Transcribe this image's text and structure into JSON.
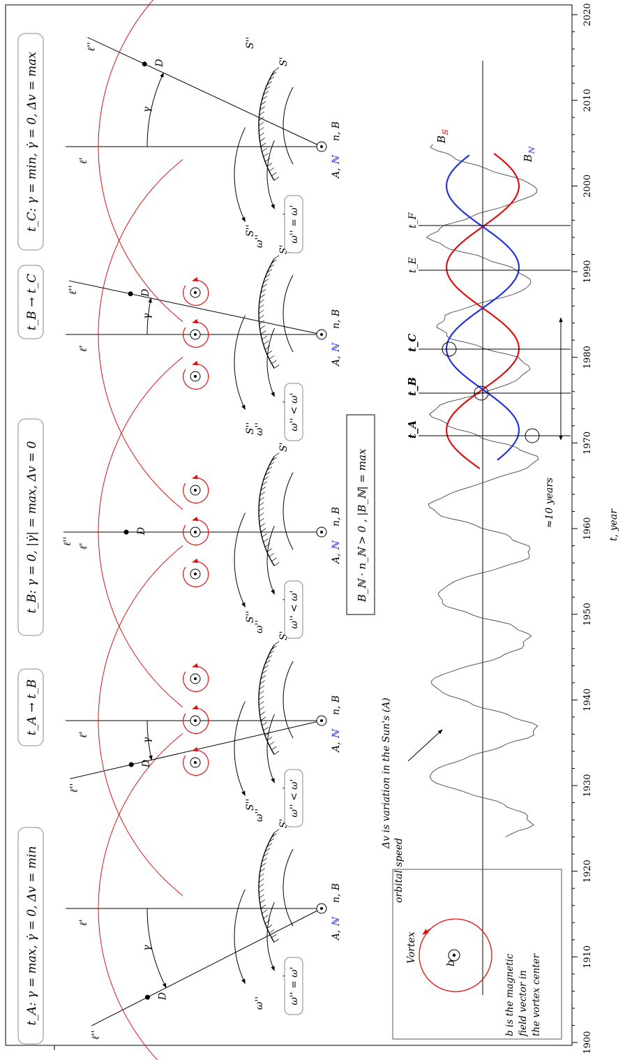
{
  "axis": {
    "title": "t, year",
    "ticks": [
      "1900",
      "1910",
      "1920",
      "1930",
      "1940",
      "1950",
      "1960",
      "1970",
      "1980",
      "1990",
      "2000",
      "2010",
      "2020"
    ]
  },
  "panels": [
    {
      "title": "t_A:  γ = max, γ̇ = 0, Δv = min",
      "relation": "ω'' = ω'",
      "labels": {
        "l1": "ℓ'",
        "l2": "ℓ''",
        "d": "D",
        "gamma": "γ",
        "s1": "S'",
        "s2": "S''",
        "w1": "ω'",
        "w2": "ω''",
        "a": "A,",
        "n": "ℕ",
        "nb": "n, B"
      }
    },
    {
      "title": "t_A → t_B",
      "relation": "ω'' < ω'",
      "labels": {
        "l1": "ℓ'",
        "l2": "ℓ''",
        "d": "D",
        "gamma": "γ",
        "s1": "S'",
        "s2": "S''",
        "w1": "ω'",
        "w2": "ω''",
        "a": "A,",
        "n": "ℕ",
        "nb": "n, B"
      }
    },
    {
      "title": "t_B:  γ = 0, |γ̇| = max, Δv = 0",
      "relation": "ω'' < ω'",
      "labels": {
        "l1": "ℓ'",
        "l2": "ℓ''",
        "d": "D",
        "s1": "S'",
        "s2": "S''",
        "w1": "ω'",
        "w2": "ω''",
        "a": "A,",
        "n": "ℕ",
        "nb": "n, B"
      }
    },
    {
      "title": "t_B → t_C",
      "relation": "ω'' < ω'",
      "labels": {
        "l1": "ℓ'",
        "l2": "ℓ''",
        "d": "D",
        "gamma": "γ",
        "s1": "S'",
        "s2": "S''",
        "w1": "ω'",
        "w2": "ω''",
        "a": "A,",
        "n": "ℕ",
        "nb": "n, B"
      }
    },
    {
      "title": "t_C:  γ = min, γ̇ = 0, Δv = max",
      "relation": "ω'' = ω'",
      "labels": {
        "l1": "ℓ'",
        "l2": "ℓ''",
        "d": "D",
        "gamma": "γ",
        "s1": "S'",
        "s2": "S''",
        "w1": "ω'",
        "w2": "ω''",
        "a": "A,",
        "n": "ℕ",
        "nb": "n, B"
      }
    }
  ],
  "condition": "B_ℕ · n_ℕ > 0 ,  |B_ℕ| = max",
  "dv_note_line1": "Δv is variation in the Sun's (A)",
  "dv_note_line2": "orbital speed",
  "period_label": "≈10 years",
  "markers": {
    "tA": "t_A",
    "tB": "t_B",
    "tC": "t_C",
    "tE": "t_E",
    "tF": "t_F"
  },
  "curve_labels": {
    "bs": "B",
    "bs_sub": "𝕊",
    "bn": "B",
    "bn_sub": "ℕ"
  },
  "legend": {
    "title": "Vortex",
    "symbol": "b",
    "line1": "b is the magnetic",
    "line2": "field vector in",
    "line3": "the vortex center"
  },
  "colors": {
    "red": "#dd1111",
    "blue": "#2233dd",
    "black": "#000000",
    "grey": "#444444"
  }
}
